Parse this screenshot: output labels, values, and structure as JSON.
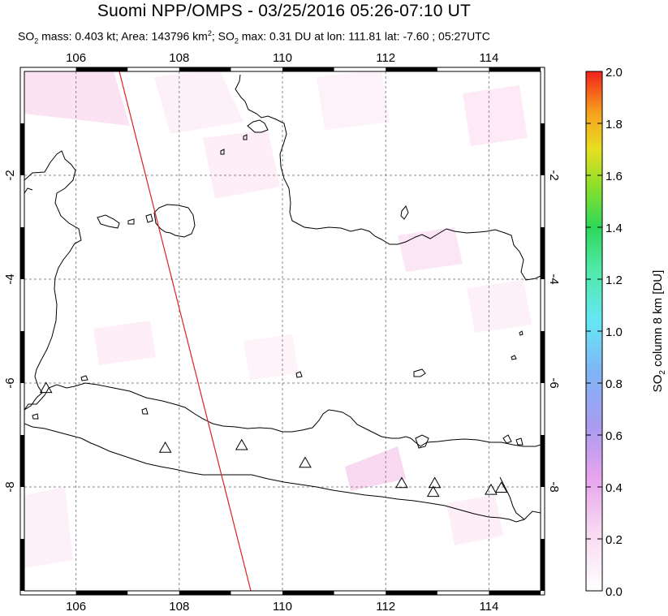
{
  "header": {
    "title": "Suomi NPP/OMPS - 03/25/2016 05:26-07:10 UT",
    "so2_prefix": "SO",
    "so2_sub": "2",
    "mass_text": " mass: 0.403 kt; Area: 143796 km",
    "area_sup": "2",
    "max_prefix": "; SO",
    "max_sub": "2",
    "max_text": " max: 0.31 DU at lon: 111.81 lat: -7.60 ; 05:27UTC"
  },
  "map": {
    "lon_ticks": [
      "106",
      "108",
      "110",
      "112",
      "114"
    ],
    "lat_ticks": [
      "-2",
      "-4",
      "-6",
      "-8"
    ],
    "lon_range": [
      105.0,
      115.0
    ],
    "lat_range": [
      0.0,
      -10.0
    ],
    "grid": true,
    "orbit_track_color": "#dd2222",
    "volcano_markers": [
      {
        "lon": 105.42,
        "lat": -6.1
      },
      {
        "lon": 107.73,
        "lat": -7.25
      },
      {
        "lon": 109.21,
        "lat": -7.2
      },
      {
        "lon": 110.44,
        "lat": -7.54
      },
      {
        "lon": 112.31,
        "lat": -7.93
      },
      {
        "lon": 112.92,
        "lat": -8.1
      },
      {
        "lon": 112.95,
        "lat": -7.93
      },
      {
        "lon": 114.04,
        "lat": -8.06
      },
      {
        "lon": 114.24,
        "lat": -8.02
      }
    ]
  },
  "colorbar": {
    "title": "SO",
    "title_sub": "2",
    "title_rest": " column 8 km [DU]",
    "min": 0.0,
    "max": 2.0,
    "tick_labels": [
      "0.0",
      "0.2",
      "0.4",
      "0.6",
      "0.8",
      "1.0",
      "1.2",
      "1.4",
      "1.6",
      "1.8",
      "2.0"
    ]
  }
}
